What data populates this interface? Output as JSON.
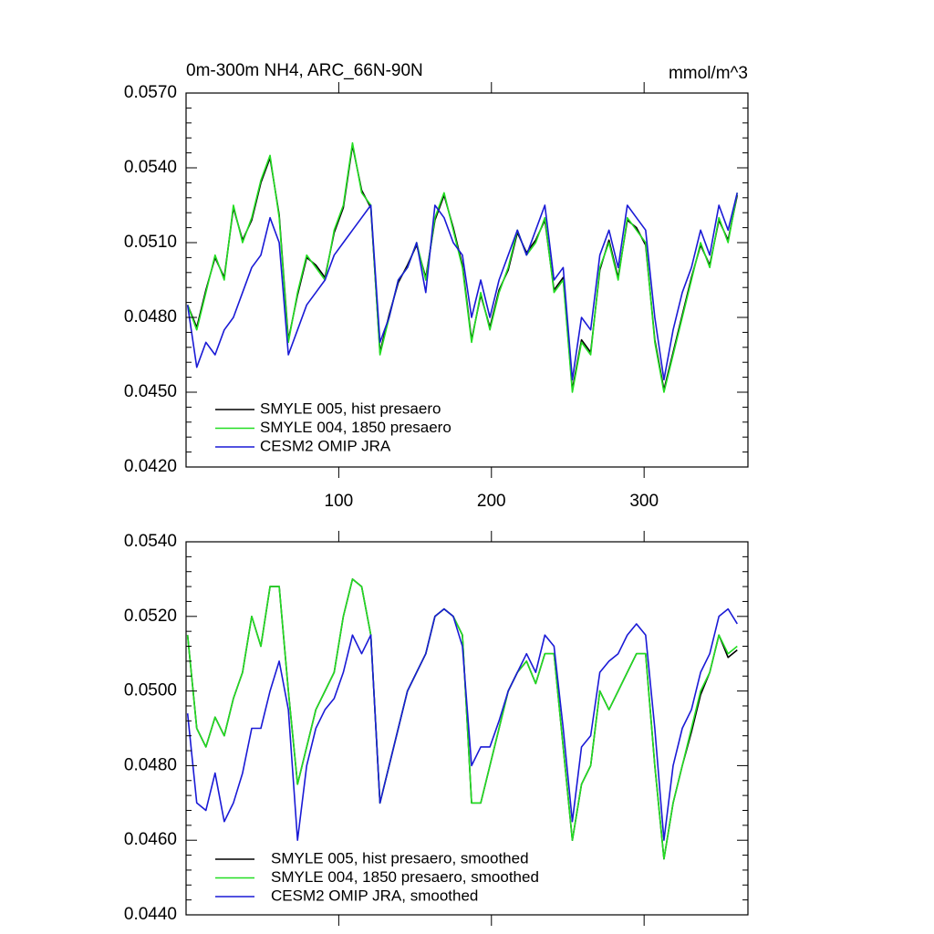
{
  "chart_data": [
    {
      "type": "line",
      "title": "0m-300m NH4, ARC_66N-90N",
      "units": "mmol/m^3",
      "x": [
        1,
        7,
        13,
        19,
        25,
        31,
        37,
        43,
        49,
        55,
        61,
        67,
        73,
        79,
        85,
        91,
        97,
        103,
        109,
        115,
        121,
        127,
        133,
        139,
        145,
        151,
        157,
        163,
        169,
        175,
        181,
        187,
        193,
        199,
        205,
        211,
        217,
        223,
        229,
        235,
        241,
        247,
        253,
        259,
        265,
        271,
        277,
        283,
        289,
        295,
        301,
        307,
        313,
        319,
        325,
        331,
        337,
        343,
        349,
        355,
        361
      ],
      "xlim": [
        0,
        368
      ],
      "xticks": [
        100,
        200,
        300
      ],
      "ylim": [
        0.042,
        0.057
      ],
      "yticks": [
        {
          "value": 0.042,
          "label": "0.0420"
        },
        {
          "value": 0.045,
          "label": "0.0450"
        },
        {
          "value": 0.048,
          "label": "0.0480"
        },
        {
          "value": 0.051,
          "label": "0.0510"
        },
        {
          "value": 0.054,
          "label": "0.0540"
        },
        {
          "value": 0.057,
          "label": "0.0570"
        }
      ],
      "series": [
        {
          "name": "SMYLE 005, hist presaero",
          "color": "#000000",
          "values": [
            0.0485,
            0.0476,
            0.0491,
            0.0504,
            0.0496,
            0.0524,
            0.0511,
            0.0519,
            0.0534,
            0.0544,
            0.0521,
            0.0471,
            0.0489,
            0.0504,
            0.0501,
            0.0496,
            0.0514,
            0.0524,
            0.0549,
            0.0531,
            0.0524,
            0.0466,
            0.0481,
            0.0494,
            0.0501,
            0.0509,
            0.0496,
            0.0519,
            0.0529,
            0.0516,
            0.0501,
            0.0471,
            0.0489,
            0.0476,
            0.0491,
            0.0499,
            0.0514,
            0.0506,
            0.0511,
            0.0519,
            0.0491,
            0.0496,
            0.0451,
            0.0471,
            0.0466,
            0.0499,
            0.0511,
            0.0496,
            0.0519,
            0.0516,
            0.0509,
            0.0471,
            0.0451,
            0.0466,
            0.0481,
            0.0496,
            0.0509,
            0.0501,
            0.0519,
            0.0511,
            0.0529
          ]
        },
        {
          "name": "SMYLE 004, 1850 presaero",
          "color": "#22dd22",
          "values": [
            0.0485,
            0.0475,
            0.049,
            0.0505,
            0.0495,
            0.0525,
            0.051,
            0.052,
            0.0535,
            0.0545,
            0.052,
            0.047,
            0.049,
            0.0505,
            0.05,
            0.0495,
            0.0515,
            0.0525,
            0.055,
            0.053,
            0.0525,
            0.0465,
            0.048,
            0.0495,
            0.05,
            0.051,
            0.0495,
            0.052,
            0.053,
            0.0515,
            0.05,
            0.047,
            0.049,
            0.0475,
            0.049,
            0.05,
            0.0515,
            0.0505,
            0.051,
            0.052,
            0.049,
            0.0495,
            0.045,
            0.047,
            0.0465,
            0.05,
            0.051,
            0.0495,
            0.052,
            0.0515,
            0.051,
            0.047,
            0.045,
            0.0465,
            0.048,
            0.0495,
            0.051,
            0.05,
            0.052,
            0.051,
            0.053
          ]
        },
        {
          "name": "CESM2 OMIP JRA",
          "color": "#1a1ad6",
          "values": [
            0.0485,
            0.046,
            0.047,
            0.0465,
            0.0475,
            0.048,
            0.049,
            0.05,
            0.0505,
            0.052,
            0.051,
            0.0465,
            0.0475,
            0.0485,
            0.049,
            0.0495,
            0.0505,
            0.051,
            0.0515,
            0.052,
            0.0525,
            0.047,
            0.048,
            0.0495,
            0.05,
            0.051,
            0.049,
            0.0525,
            0.052,
            0.051,
            0.0505,
            0.048,
            0.0495,
            0.048,
            0.0495,
            0.0505,
            0.0515,
            0.0505,
            0.0515,
            0.0525,
            0.0495,
            0.05,
            0.0455,
            0.048,
            0.0475,
            0.0505,
            0.0515,
            0.05,
            0.0525,
            0.052,
            0.0515,
            0.048,
            0.0455,
            0.0475,
            0.049,
            0.05,
            0.0515,
            0.0505,
            0.0525,
            0.0515,
            0.053
          ]
        }
      ]
    },
    {
      "type": "line",
      "x": [
        1,
        7,
        13,
        19,
        25,
        31,
        37,
        43,
        49,
        55,
        61,
        67,
        73,
        79,
        85,
        91,
        97,
        103,
        109,
        115,
        121,
        127,
        133,
        139,
        145,
        151,
        157,
        163,
        169,
        175,
        181,
        187,
        193,
        199,
        205,
        211,
        217,
        223,
        229,
        235,
        241,
        247,
        253,
        259,
        265,
        271,
        277,
        283,
        289,
        295,
        301,
        307,
        313,
        319,
        325,
        331,
        337,
        343,
        349,
        355,
        361
      ],
      "xlim": [
        0,
        368
      ],
      "ylim": [
        0.044,
        0.054
      ],
      "yticks": [
        {
          "value": 0.044,
          "label": "0.0440"
        },
        {
          "value": 0.046,
          "label": "0.0460"
        },
        {
          "value": 0.048,
          "label": "0.0480"
        },
        {
          "value": 0.05,
          "label": "0.0500"
        },
        {
          "value": 0.052,
          "label": "0.0520"
        },
        {
          "value": 0.054,
          "label": "0.0540"
        }
      ],
      "series": [
        {
          "name": "SMYLE 005, hist presaero, smoothed",
          "color": "#000000",
          "values": [
            0.0515,
            0.049,
            0.0485,
            0.0493,
            0.0488,
            0.0498,
            0.0505,
            0.052,
            0.0512,
            0.0528,
            0.0528,
            0.05,
            0.0475,
            0.0485,
            0.0495,
            0.05,
            0.0505,
            0.052,
            0.053,
            0.0528,
            0.0515,
            0.047,
            0.048,
            0.049,
            0.05,
            0.0505,
            0.051,
            0.052,
            0.0522,
            0.052,
            0.0515,
            0.047,
            0.047,
            0.048,
            0.049,
            0.05,
            0.0505,
            0.0508,
            0.0502,
            0.051,
            0.051,
            0.0485,
            0.046,
            0.0475,
            0.048,
            0.05,
            0.0495,
            0.05,
            0.0505,
            0.051,
            0.051,
            0.048,
            0.0455,
            0.047,
            0.048,
            0.0489,
            0.0499,
            0.0505,
            0.0515,
            0.0509,
            0.0511
          ]
        },
        {
          "name": "SMYLE 004, 1850 presaero, smoothed",
          "color": "#22dd22",
          "values": [
            0.0515,
            0.049,
            0.0485,
            0.0493,
            0.0488,
            0.0498,
            0.0505,
            0.052,
            0.0512,
            0.0528,
            0.0528,
            0.05,
            0.0475,
            0.0485,
            0.0495,
            0.05,
            0.0505,
            0.052,
            0.053,
            0.0528,
            0.0515,
            0.047,
            0.048,
            0.049,
            0.05,
            0.0505,
            0.051,
            0.052,
            0.0522,
            0.052,
            0.0515,
            0.047,
            0.047,
            0.048,
            0.049,
            0.05,
            0.0505,
            0.0508,
            0.0502,
            0.051,
            0.051,
            0.0485,
            0.046,
            0.0475,
            0.048,
            0.05,
            0.0495,
            0.05,
            0.0505,
            0.051,
            0.051,
            0.048,
            0.0455,
            0.047,
            0.048,
            0.049,
            0.05,
            0.0505,
            0.0515,
            0.051,
            0.0512
          ]
        },
        {
          "name": "CESM2 OMIP JRA, smoothed",
          "color": "#1a1ad6",
          "values": [
            0.0494,
            0.047,
            0.0468,
            0.0478,
            0.0465,
            0.047,
            0.0478,
            0.049,
            0.049,
            0.05,
            0.0508,
            0.0495,
            0.046,
            0.048,
            0.049,
            0.0495,
            0.0498,
            0.0505,
            0.0515,
            0.051,
            0.0515,
            0.047,
            0.048,
            0.049,
            0.05,
            0.0505,
            0.051,
            0.052,
            0.0522,
            0.052,
            0.0512,
            0.048,
            0.0485,
            0.0485,
            0.0492,
            0.05,
            0.0505,
            0.051,
            0.0505,
            0.0515,
            0.0512,
            0.049,
            0.0465,
            0.0485,
            0.0488,
            0.0505,
            0.0508,
            0.051,
            0.0515,
            0.0518,
            0.0515,
            0.049,
            0.046,
            0.048,
            0.049,
            0.0495,
            0.0505,
            0.051,
            0.052,
            0.0522,
            0.0518
          ]
        }
      ]
    }
  ]
}
